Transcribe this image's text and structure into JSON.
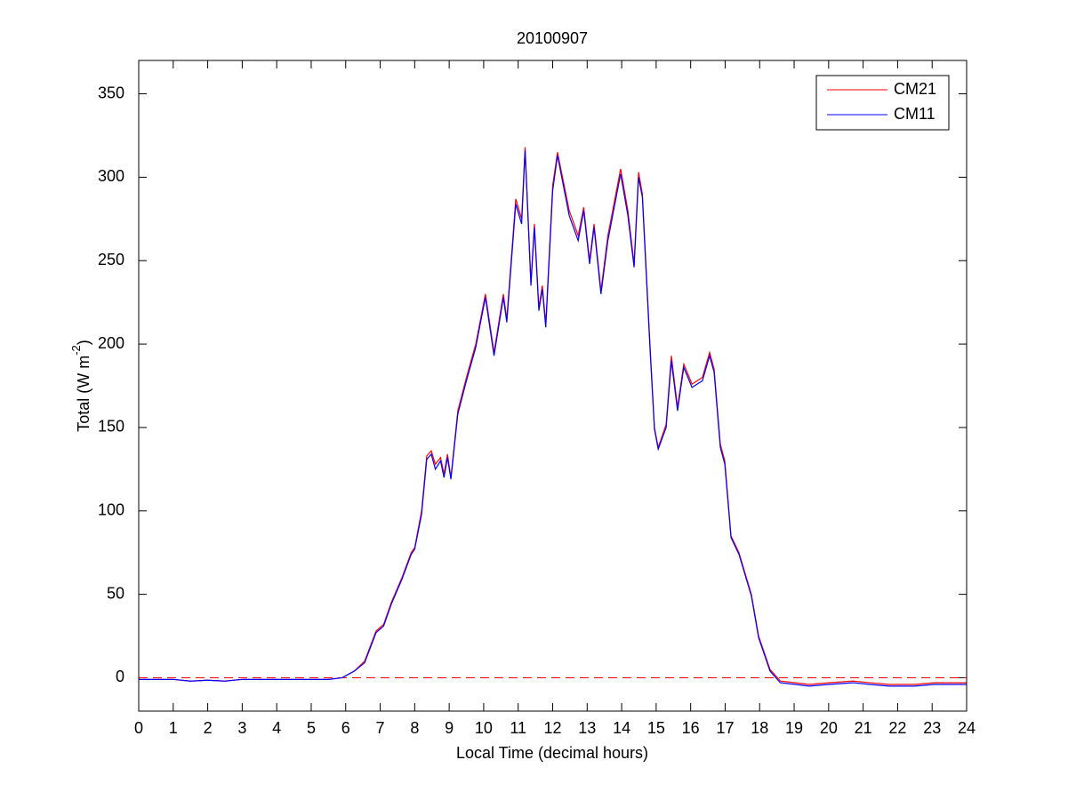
{
  "chart_data": {
    "type": "line",
    "title": "20100907",
    "x_label": "Local Time (decimal hours)",
    "y_label": {
      "text": "Total (W m",
      "superscript": "-2",
      "suffix": ")"
    },
    "x": [
      0,
      1,
      1.5,
      2,
      2.5,
      3,
      4,
      5,
      5.5,
      5.9,
      6.25,
      6.55,
      6.88,
      7.1,
      7.32,
      7.63,
      7.9,
      8.0,
      8.2,
      8.35,
      8.48,
      8.6,
      8.75,
      8.85,
      8.95,
      9.05,
      9.25,
      9.5,
      9.77,
      10.05,
      10.3,
      10.57,
      10.67,
      10.93,
      11.1,
      11.2,
      11.37,
      11.47,
      11.6,
      11.7,
      11.8,
      12.0,
      12.14,
      12.48,
      12.74,
      12.9,
      13.07,
      13.2,
      13.4,
      13.6,
      13.97,
      14.18,
      14.36,
      14.49,
      14.6,
      14.82,
      14.95,
      15.06,
      15.29,
      15.44,
      15.62,
      15.8,
      16.04,
      16.34,
      16.55,
      16.68,
      16.86,
      16.99,
      17.17,
      17.4,
      17.76,
      17.97,
      18.3,
      18.6,
      19.44,
      20,
      20.7,
      21.2,
      21.76,
      22.5,
      23.05,
      24
    ],
    "series": [
      {
        "name": "CM21",
        "color": "#ff0000",
        "values": [
          -1,
          -1,
          -2,
          -1.5,
          -2,
          -1,
          -1,
          -1,
          -1,
          0,
          4,
          10,
          28,
          32,
          45,
          60,
          75,
          78,
          100,
          133,
          136,
          128,
          132,
          122,
          134,
          120,
          160,
          180,
          200,
          230,
          195,
          230,
          215,
          287,
          275,
          318,
          237,
          272,
          222,
          235,
          212,
          295,
          315,
          280,
          265,
          282,
          250,
          272,
          232,
          265,
          305,
          280,
          248,
          303,
          290,
          200,
          150,
          138,
          152,
          193,
          162,
          188,
          176,
          180,
          195,
          185,
          140,
          130,
          85,
          75,
          50,
          25,
          5,
          -2,
          -4,
          -3,
          -2,
          -3,
          -4,
          -4,
          -3,
          -3
        ]
      },
      {
        "name": "CM11",
        "color": "#0000ff",
        "values": [
          -1,
          -1,
          -2,
          -1.5,
          -2,
          -1,
          -1,
          -1,
          -1,
          0,
          4,
          9,
          27,
          31,
          44,
          59,
          74,
          77,
          98,
          131,
          134,
          125,
          130,
          120,
          132,
          119,
          158,
          178,
          198,
          228,
          193,
          228,
          213,
          284,
          272,
          316,
          235,
          270,
          220,
          233,
          210,
          292,
          313,
          277,
          262,
          280,
          248,
          270,
          230,
          262,
          302,
          277,
          246,
          300,
          288,
          198,
          149,
          137,
          150,
          190,
          160,
          186,
          174,
          178,
          193,
          183,
          138,
          128,
          84,
          74,
          49,
          24,
          4,
          -3,
          -5,
          -4,
          -3,
          -4,
          -5,
          -5,
          -4,
          -4
        ]
      }
    ],
    "reference_line": {
      "value": 0,
      "color": "#ff0000",
      "style": "dashed"
    },
    "xlim": [
      0,
      24
    ],
    "xticks": [
      0,
      1,
      2,
      3,
      4,
      5,
      6,
      7,
      8,
      9,
      10,
      11,
      12,
      13,
      14,
      15,
      16,
      17,
      18,
      19,
      20,
      21,
      22,
      23,
      24
    ],
    "ylim": [
      -20,
      370
    ],
    "yticks": [
      0,
      50,
      100,
      150,
      200,
      250,
      300,
      350
    ],
    "grid": false,
    "legend": "upper right"
  }
}
